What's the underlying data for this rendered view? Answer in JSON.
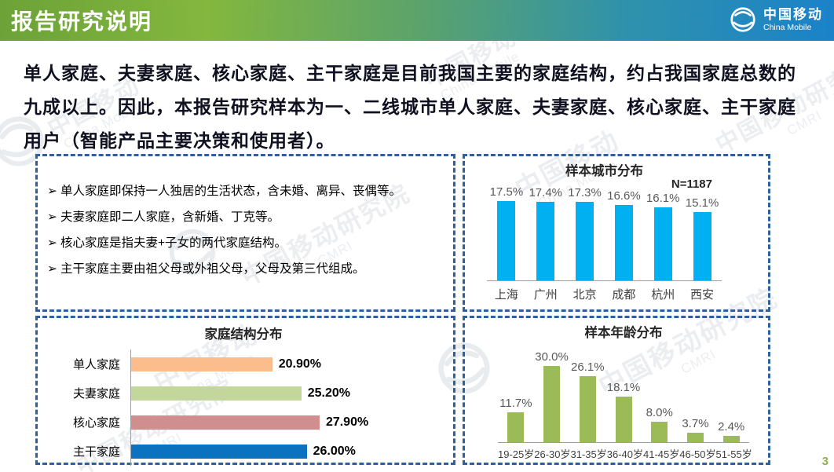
{
  "header": {
    "title": "报告研究说明",
    "logo_cn": "中国移动",
    "logo_en": "China Mobile"
  },
  "intro": {
    "text": "单人家庭、夫妻家庭、核心家庭、主干家庭是目前我国主要的家庭结构，约占我国家庭总数的九成以上。因此，本报告研究样本为一、二线城市单人家庭、夫妻家庭、核心家庭、主干家庭用户（智能产品主要决策和使用者）。"
  },
  "definitions": {
    "bullet": "➢",
    "items": [
      "单人家庭即保持一人独居的生活状态，含未婚、离异、丧偶等。",
      "夫妻家庭即二人家庭，含新婚、丁克等。",
      "核心家庭是指夫妻+子女的两代家庭结构。",
      "主干家庭主要由祖父母或外祖父母，父母及第三代组成。"
    ]
  },
  "chart_data": [
    {
      "id": "city",
      "type": "bar",
      "title": "样本城市分布",
      "note": "N=1187",
      "categories": [
        "上海",
        "广州",
        "北京",
        "成都",
        "杭州",
        "西安"
      ],
      "values": [
        17.5,
        17.4,
        17.3,
        16.6,
        16.1,
        15.1
      ],
      "labels": [
        "17.5%",
        "17.4%",
        "17.3%",
        "16.6%",
        "16.1%",
        "15.1%"
      ],
      "bar_color": "#00B0F0",
      "ylim": [
        0,
        20
      ],
      "grid": false,
      "legend": "none"
    },
    {
      "id": "family",
      "type": "bar-horizontal",
      "title": "家庭结构分布",
      "categories": [
        "单人家庭",
        "夫妻家庭",
        "核心家庭",
        "主干家庭"
      ],
      "values": [
        20.9,
        25.2,
        27.9,
        26.0
      ],
      "labels": [
        "20.90%",
        "25.20%",
        "27.90%",
        "26.00%"
      ],
      "bar_colors": [
        "#FABD8B",
        "#C3D69B",
        "#D08F8E",
        "#0A72BE"
      ],
      "xlim": [
        0,
        30
      ],
      "grid": false,
      "legend": "none"
    },
    {
      "id": "age",
      "type": "bar",
      "title": "样本年龄分布",
      "categories": [
        "19-25岁",
        "26-30岁",
        "31-35岁",
        "36-40岁",
        "41-45岁",
        "46-50岁",
        "51-55岁"
      ],
      "values": [
        11.7,
        30.0,
        26.1,
        18.1,
        8.0,
        3.7,
        2.4
      ],
      "labels": [
        "11.7%",
        "30.0%",
        "26.1%",
        "18.1%",
        "8.0%",
        "3.7%",
        "2.4%"
      ],
      "bar_color": "#9BBB59",
      "ylim": [
        0,
        32
      ],
      "grid": false,
      "legend": "none"
    }
  ],
  "watermarks": [
    {
      "main": "中国移动",
      "sub": "China Mobile"
    },
    {
      "main": "中国移动研究院",
      "sub": "CMRI"
    }
  ],
  "page": {
    "number": "3"
  },
  "colors": {
    "panel_border": "#2E6099",
    "header_gradient_start": "#6CA238",
    "header_gradient_end": "#1A82C9",
    "page_number": "#8FAF4E"
  }
}
